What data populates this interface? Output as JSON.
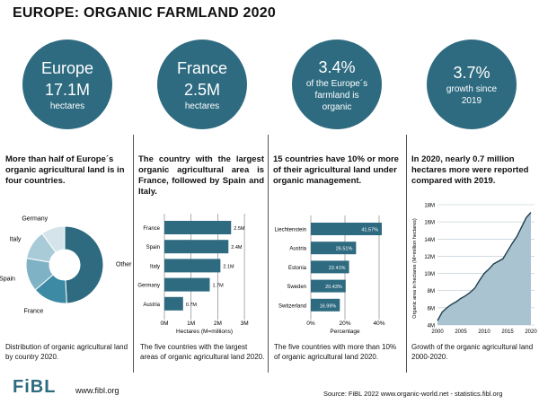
{
  "title": "EUROPE: ORGANIC FARMLAND 2020",
  "circles": [
    {
      "top": "Europe",
      "big": "17.1M",
      "bottom": "hectares"
    },
    {
      "top": "France",
      "big": "2.5M",
      "bottom": "hectares"
    },
    {
      "big": "3.4%",
      "bottom": "of the Europe´s farmland is organic"
    },
    {
      "big": "3.7%",
      "bottom": "growth since 2019"
    }
  ],
  "leads": [
    "More than half of Europe´s organic agricultural land is in four countries.",
    "The country with the largest organic agricultural area is France, followed by Spain and Italy.",
    "15 countries have 10% or more of their agricultural land under organic management.",
    "In 2020, nearly 0.7 million hectares more were reported compared with 2019."
  ],
  "captions": [
    "Distribution of organic agricultural land by country 2020.",
    "The five countries with the largest areas of organic agricultural land 2020.",
    "The five countries with more than 10% of organic agricultural land 2020.",
    "Growth of the organic agricultural land 2000-2020."
  ],
  "footer": {
    "logo": "FiBL",
    "site": "www.fibl.org",
    "source": "Source: FiBL 2022 www.organic-world.net - statistics.fibl.org"
  },
  "colors": {
    "primary": "#2e6b80",
    "area": "#a9c3d0"
  },
  "chart_data": [
    {
      "type": "pie",
      "variant": "donut",
      "categories": [
        "Other",
        "France",
        "Spain",
        "Italy",
        "Germany"
      ],
      "values": [
        49.1,
        14.6,
        14.0,
        12.3,
        9.9
      ],
      "colors": [
        "#2e6b80",
        "#3d8aa5",
        "#7fb2c5",
        "#a9cbd8",
        "#d4e4ea"
      ]
    },
    {
      "type": "bar",
      "orientation": "horizontal",
      "categories": [
        "France",
        "Spain",
        "Italy",
        "Germany",
        "Austria"
      ],
      "values": [
        2.5,
        2.4,
        2.1,
        1.7,
        0.7
      ],
      "data_labels": [
        "2.5M",
        "2.4M",
        "2.1M",
        "1.7M",
        "0.7M"
      ],
      "xlabel": "Hectares (M=millions)",
      "xticks": [
        "0M",
        "1M",
        "2M",
        "3M"
      ],
      "xlim": [
        0,
        3
      ],
      "grid": true
    },
    {
      "type": "bar",
      "orientation": "horizontal",
      "categories": [
        "Liechtenstein",
        "Austria",
        "Estonia",
        "Sweden",
        "Switzerland"
      ],
      "values": [
        41.57,
        26.51,
        22.41,
        20.43,
        16.99
      ],
      "data_labels": [
        "41.57%",
        "26.51%",
        "22.41%",
        "20.43%",
        "16.99%"
      ],
      "xlabel": "Percentage",
      "xticks": [
        "0%",
        "20%",
        "40%"
      ],
      "xlim": [
        0,
        40
      ],
      "grid": true
    },
    {
      "type": "area",
      "x": [
        2000,
        2001,
        2002,
        2003,
        2004,
        2005,
        2006,
        2007,
        2008,
        2009,
        2010,
        2011,
        2012,
        2013,
        2014,
        2015,
        2016,
        2017,
        2018,
        2019,
        2020
      ],
      "y": [
        4.5,
        5.5,
        6.0,
        6.4,
        6.7,
        7.1,
        7.4,
        7.8,
        8.3,
        9.2,
        10.0,
        10.5,
        11.1,
        11.4,
        11.7,
        12.6,
        13.5,
        14.3,
        15.4,
        16.5,
        17.1
      ],
      "ylabel": "Organic area in hectares (M=million hectares)",
      "ylim": [
        4,
        18
      ],
      "yticks": [
        "4M",
        "6M",
        "8M",
        "10M",
        "12M",
        "14M",
        "16M",
        "18M"
      ],
      "xticks": [
        "2000",
        "2005",
        "2010",
        "2015",
        "2020"
      ],
      "grid": true
    }
  ]
}
